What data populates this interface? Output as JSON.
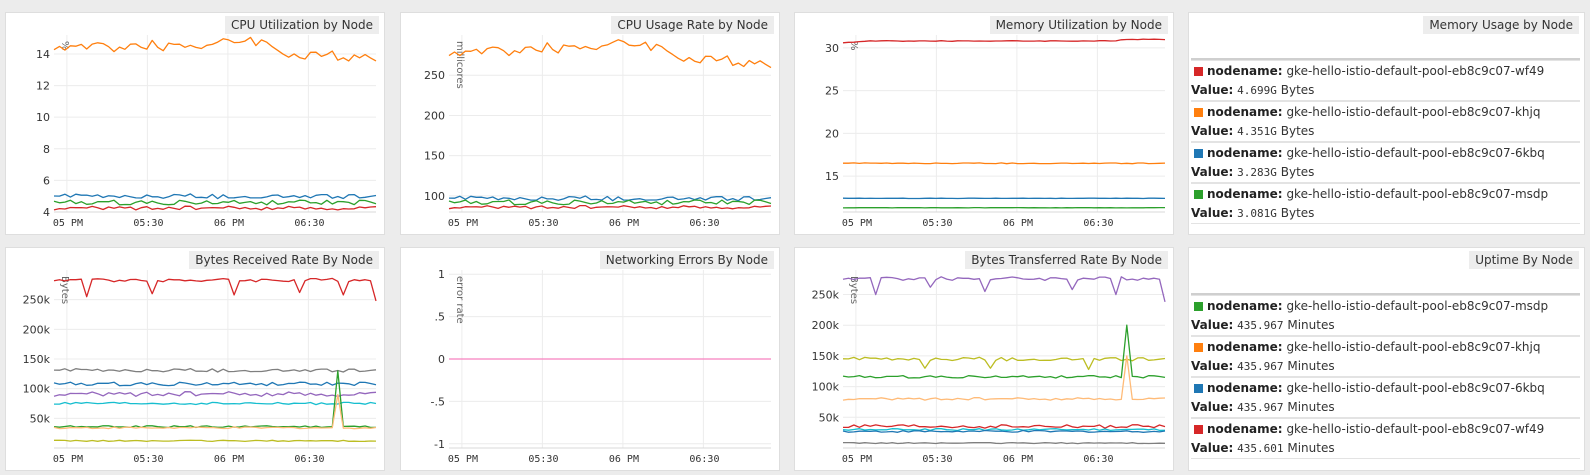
{
  "colors": {
    "red": "#d62728",
    "orange": "#ff7f0e",
    "blue": "#1f77b4",
    "green": "#2ca02c",
    "purple": "#9467bd",
    "gray": "#7f7f7f",
    "cyan": "#17becf",
    "olive": "#bcbd22",
    "peach": "#ffbb78",
    "pink": "#f781bf"
  },
  "key_label": "nodename:",
  "value_label": "Value:",
  "panels": {
    "cpu_util": {
      "title": "CPU Utilization by Node"
    },
    "cpu_rate": {
      "title": "CPU Usage Rate by Node"
    },
    "mem_util": {
      "title": "Memory Utilization by Node"
    },
    "mem_usage": {
      "title": "Memory Usage by Node"
    },
    "bytes_rx": {
      "title": "Bytes Received Rate By Node"
    },
    "net_err": {
      "title": "Networking Errors By Node"
    },
    "bytes_tx": {
      "title": "Bytes Transferred Rate By Node"
    },
    "uptime": {
      "title": "Uptime By Node"
    }
  },
  "chart_data": [
    {
      "id": "cpu_util",
      "type": "line",
      "title": "CPU Utilization by Node",
      "ylabel": "%",
      "ylim": [
        4,
        15.2
      ],
      "yticks": [
        "14",
        "12",
        "10",
        "8",
        "6",
        "4"
      ],
      "ytick_values": [
        14,
        12,
        10,
        8,
        6,
        4
      ],
      "xticks": [
        "05 PM",
        "05:30",
        "06 PM",
        "06:30"
      ],
      "points": 60,
      "grid": true,
      "series": [
        {
          "color": "orange",
          "base": 14.3,
          "amp": 0.35,
          "trend": [
            [
              0,
              14.4
            ],
            [
              30,
              14.6
            ],
            [
              36,
              15.0
            ],
            [
              45,
              13.8
            ],
            [
              60,
              13.9
            ]
          ]
        },
        {
          "color": "blue",
          "base": 5.0,
          "amp": 0.15
        },
        {
          "color": "green",
          "base": 4.6,
          "amp": 0.15
        },
        {
          "color": "red",
          "base": 4.25,
          "amp": 0.12
        }
      ]
    },
    {
      "id": "cpu_rate",
      "type": "line",
      "title": "CPU Usage Rate by Node",
      "ylabel": "millicores",
      "ylim": [
        80,
        300
      ],
      "yticks": [
        "250",
        "200",
        "150",
        "100"
      ],
      "ytick_values": [
        250,
        200,
        150,
        100
      ],
      "xticks": [
        "05 PM",
        "05:30",
        "06 PM",
        "06:30"
      ],
      "points": 60,
      "grid": true,
      "series": [
        {
          "color": "orange",
          "base": 276,
          "amp": 7,
          "trend": [
            [
              0,
              277
            ],
            [
              36,
              290
            ],
            [
              45,
              268
            ],
            [
              60,
              266
            ]
          ]
        },
        {
          "color": "blue",
          "base": 97,
          "amp": 3
        },
        {
          "color": "green",
          "base": 92,
          "amp": 3
        },
        {
          "color": "red",
          "base": 86,
          "amp": 2
        }
      ]
    },
    {
      "id": "mem_util",
      "type": "line",
      "title": "Memory Utilization by Node",
      "ylabel": "%",
      "ylim": [
        10.8,
        31.5
      ],
      "yticks": [
        "30",
        "25",
        "20",
        "15"
      ],
      "ytick_values": [
        30,
        25,
        20,
        15
      ],
      "xticks": [
        "05 PM",
        "05:30",
        "06 PM",
        "06:30"
      ],
      "points": 60,
      "grid": true,
      "series": [
        {
          "color": "red",
          "base": 30.7,
          "amp": 0.04,
          "trend": [
            [
              0,
              30.6
            ],
            [
              5,
              30.8
            ],
            [
              50,
              30.8
            ],
            [
              52,
              31.0
            ],
            [
              60,
              31.0
            ]
          ]
        },
        {
          "color": "orange",
          "base": 16.5,
          "amp": 0.05
        },
        {
          "color": "blue",
          "base": 12.4,
          "amp": 0.02
        },
        {
          "color": "green",
          "base": 11.3,
          "amp": 0.02
        }
      ]
    },
    {
      "id": "bytes_rx",
      "type": "line",
      "title": "Bytes Received Rate By Node",
      "ylabel": "Bytes",
      "ylim": [
        0,
        300000
      ],
      "yticks": [
        "250k",
        "200k",
        "150k",
        "100k",
        "50k"
      ],
      "ytick_values": [
        250000,
        200000,
        150000,
        100000,
        50000
      ],
      "xticks": [
        "05 PM",
        "05:30",
        "06 PM",
        "06:30"
      ],
      "points": 60,
      "grid": true,
      "series": [
        {
          "color": "red",
          "base": 283000,
          "amp": 3000,
          "dips": [
            [
              6,
              255000
            ],
            [
              18,
              260000
            ],
            [
              33,
              258000
            ],
            [
              45,
              262000
            ],
            [
              53,
              258000
            ],
            [
              59,
              248000
            ]
          ]
        },
        {
          "color": "gray",
          "base": 131000,
          "amp": 3000
        },
        {
          "color": "blue",
          "base": 108000,
          "amp": 3000
        },
        {
          "color": "purple",
          "base": 91000,
          "amp": 4000
        },
        {
          "color": "cyan",
          "base": 75000,
          "amp": 2000
        },
        {
          "color": "green",
          "base": 36000,
          "amp": 1500,
          "spike": [
            52,
            130000
          ]
        },
        {
          "color": "peach",
          "base": 34000,
          "amp": 1500,
          "spike": [
            52,
            90000
          ]
        },
        {
          "color": "olive",
          "base": 12000,
          "amp": 1000
        }
      ]
    },
    {
      "id": "net_err",
      "type": "line",
      "title": "Networking Errors By Node",
      "ylabel": "error rate",
      "ylim": [
        -1.05,
        1.05
      ],
      "yticks": [
        "1",
        ".5",
        "0",
        "-.5",
        "-1"
      ],
      "ytick_values": [
        1,
        0.5,
        0,
        -0.5,
        -1
      ],
      "xticks": [
        "05 PM",
        "05:30",
        "06 PM",
        "06:30"
      ],
      "points": 60,
      "grid": true,
      "series": [
        {
          "color": "pink",
          "base": 0,
          "amp": 0
        }
      ]
    },
    {
      "id": "bytes_tx",
      "type": "line",
      "title": "Bytes Transferred Rate By Node",
      "ylabel": "Bytes",
      "ylim": [
        0,
        290000
      ],
      "yticks": [
        "250k",
        "200k",
        "150k",
        "100k",
        "50k"
      ],
      "ytick_values": [
        250000,
        200000,
        150000,
        100000,
        50000
      ],
      "xticks": [
        "05 PM",
        "05:30",
        "06 PM",
        "06:30"
      ],
      "points": 60,
      "grid": true,
      "series": [
        {
          "color": "purple",
          "base": 276000,
          "amp": 3000,
          "dips": [
            [
              6,
              250000
            ],
            [
              16,
              262000
            ],
            [
              26,
              255000
            ],
            [
              42,
              258000
            ],
            [
              50,
              250000
            ],
            [
              59,
              238000
            ]
          ]
        },
        {
          "color": "olive",
          "base": 145000,
          "amp": 3000,
          "dips": [
            [
              15,
              130000
            ],
            [
              27,
              130000
            ],
            [
              45,
              128000
            ]
          ]
        },
        {
          "color": "green",
          "base": 116000,
          "amp": 2000,
          "spike": [
            52,
            200000
          ]
        },
        {
          "color": "peach",
          "base": 80000,
          "amp": 2000,
          "spike": [
            52,
            150000
          ]
        },
        {
          "color": "red",
          "base": 35000,
          "amp": 3000
        },
        {
          "color": "cyan",
          "base": 30000,
          "amp": 1500
        },
        {
          "color": "blue",
          "base": 27000,
          "amp": 1500
        },
        {
          "color": "gray",
          "base": 8000,
          "amp": 800
        }
      ]
    }
  ],
  "memory_usage": [
    {
      "color": "red",
      "nodename": "gke-hello-istio-default-pool-eb8c9c07-wf49",
      "value": "4.699G",
      "unit": "Bytes"
    },
    {
      "color": "orange",
      "nodename": "gke-hello-istio-default-pool-eb8c9c07-khjq",
      "value": "4.351G",
      "unit": "Bytes"
    },
    {
      "color": "blue",
      "nodename": "gke-hello-istio-default-pool-eb8c9c07-6kbq",
      "value": "3.283G",
      "unit": "Bytes"
    },
    {
      "color": "green",
      "nodename": "gke-hello-istio-default-pool-eb8c9c07-msdp",
      "value": "3.081G",
      "unit": "Bytes"
    }
  ],
  "uptime": [
    {
      "color": "green",
      "nodename": "gke-hello-istio-default-pool-eb8c9c07-msdp",
      "value": "435.967",
      "unit": "Minutes"
    },
    {
      "color": "orange",
      "nodename": "gke-hello-istio-default-pool-eb8c9c07-khjq",
      "value": "435.967",
      "unit": "Minutes"
    },
    {
      "color": "blue",
      "nodename": "gke-hello-istio-default-pool-eb8c9c07-6kbq",
      "value": "435.967",
      "unit": "Minutes"
    },
    {
      "color": "red",
      "nodename": "gke-hello-istio-default-pool-eb8c9c07-wf49",
      "value": "435.601",
      "unit": "Minutes"
    }
  ]
}
